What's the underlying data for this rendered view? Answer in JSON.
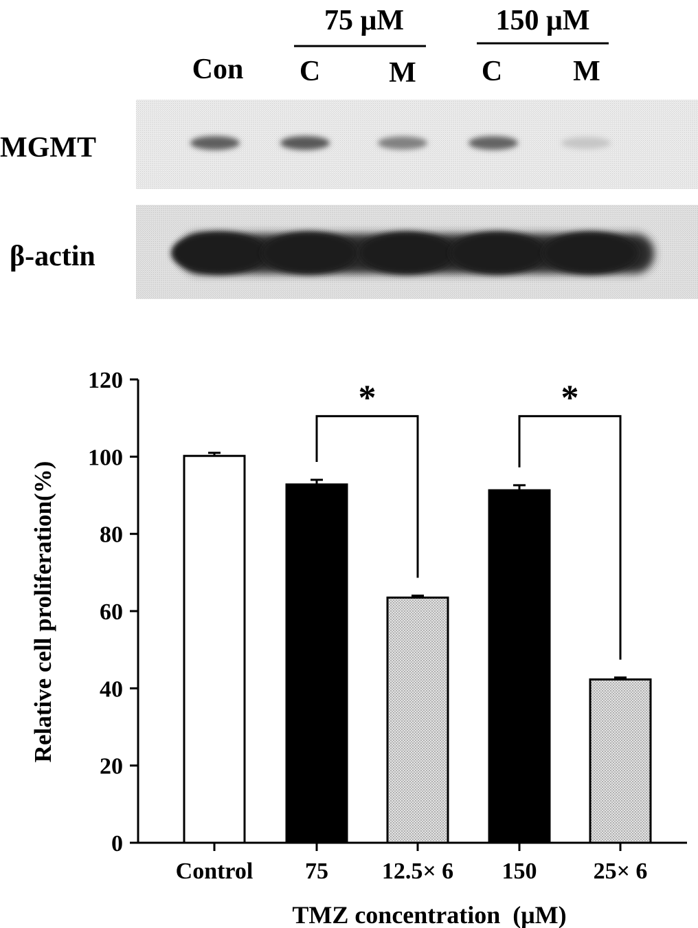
{
  "blot": {
    "header": {
      "con": "Con",
      "group1": "75 μM",
      "group2": "150 μM",
      "c1": "C",
      "m1": "M",
      "c2": "C",
      "m2": "M"
    },
    "rows": [
      {
        "label": "MGMT",
        "band_intensity": [
          0.7,
          0.72,
          0.55,
          0.68,
          0.25
        ]
      },
      {
        "label": "β-actin",
        "band_intensity": [
          1.0,
          1.0,
          1.0,
          1.0,
          1.0
        ]
      }
    ]
  },
  "chart_data": {
    "type": "bar",
    "categories": [
      "Control",
      "75",
      "12.5× 6",
      "150",
      "25× 6"
    ],
    "values": [
      100.2,
      92.8,
      63.5,
      91.3,
      42.3
    ],
    "errors": [
      0.8,
      1.2,
      0.5,
      1.3,
      0.5
    ],
    "fills": [
      "white",
      "black",
      "dotted",
      "black",
      "dotted"
    ],
    "xlabel": "TMZ concentration  (μM)",
    "ylabel": "Relative cell proliferation(%)",
    "ylim": [
      0,
      120
    ],
    "yticks": [
      0,
      20,
      40,
      60,
      80,
      100,
      120
    ],
    "significance": [
      {
        "from": 1,
        "to": 2,
        "label": "*"
      },
      {
        "from": 3,
        "to": 4,
        "label": "*"
      }
    ],
    "grid": false,
    "colors": {
      "black_bar": "#000000",
      "dotted_bar": "#d6d6d6",
      "white_bar": "#ffffff"
    }
  }
}
